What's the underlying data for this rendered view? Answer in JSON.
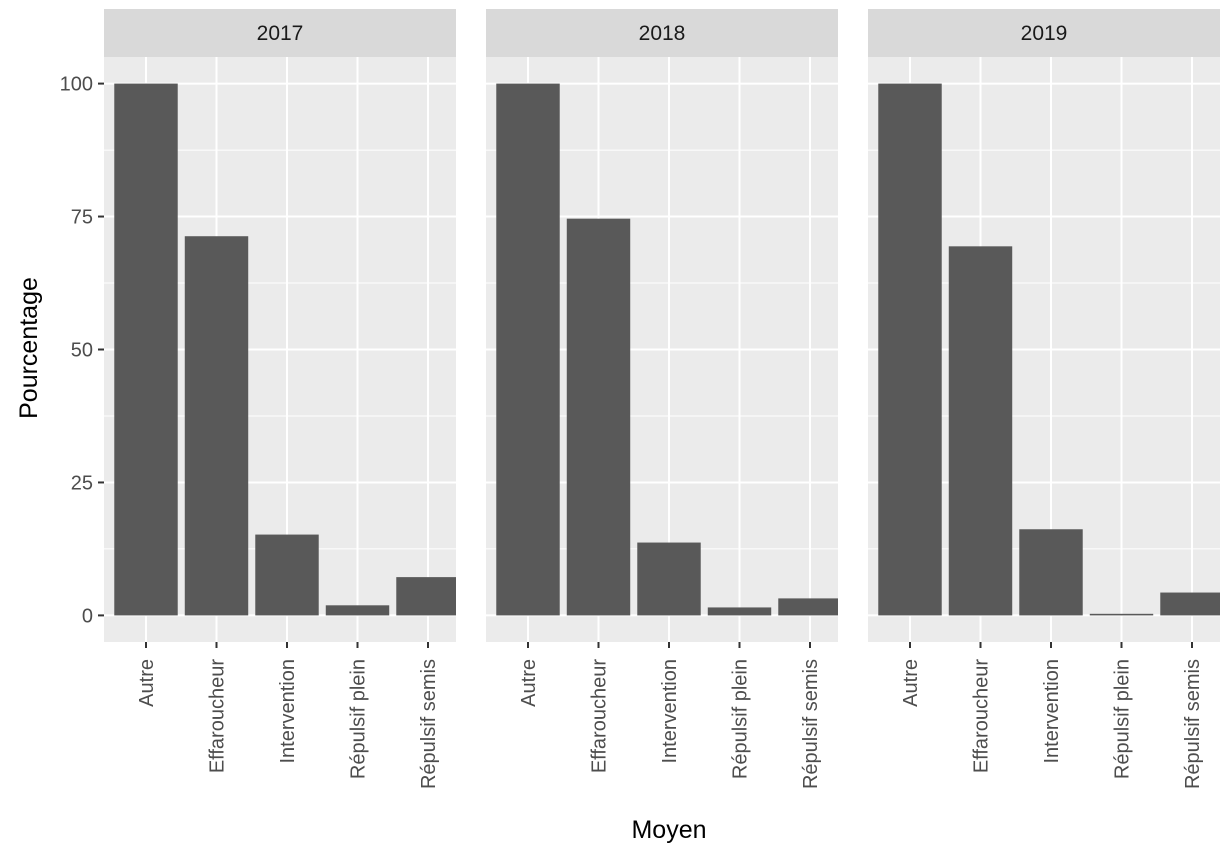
{
  "chart_data": {
    "type": "bar",
    "facets": [
      "2017",
      "2018",
      "2019"
    ],
    "categories": [
      "Autre",
      "Effaroucheur",
      "Intervention",
      "Répulsif plein",
      "Répulsif semis"
    ],
    "series": [
      {
        "facet": "2017",
        "values": [
          100,
          71.3,
          15.2,
          1.9,
          7.2
        ]
      },
      {
        "facet": "2018",
        "values": [
          100,
          74.6,
          13.7,
          1.5,
          3.2
        ]
      },
      {
        "facet": "2019",
        "values": [
          100,
          69.4,
          16.2,
          0.3,
          4.3
        ]
      }
    ],
    "xlabel": "Moyen",
    "ylabel": "Pourcentage",
    "yticks": [
      "0",
      "25",
      "50",
      "75",
      "100"
    ],
    "ylim": [
      -5,
      105
    ],
    "grid": true,
    "bar_color": "#595959",
    "panel_background": "#ebebeb",
    "strip_background": "#d9d9d9",
    "grid_color": "#ffffff"
  }
}
